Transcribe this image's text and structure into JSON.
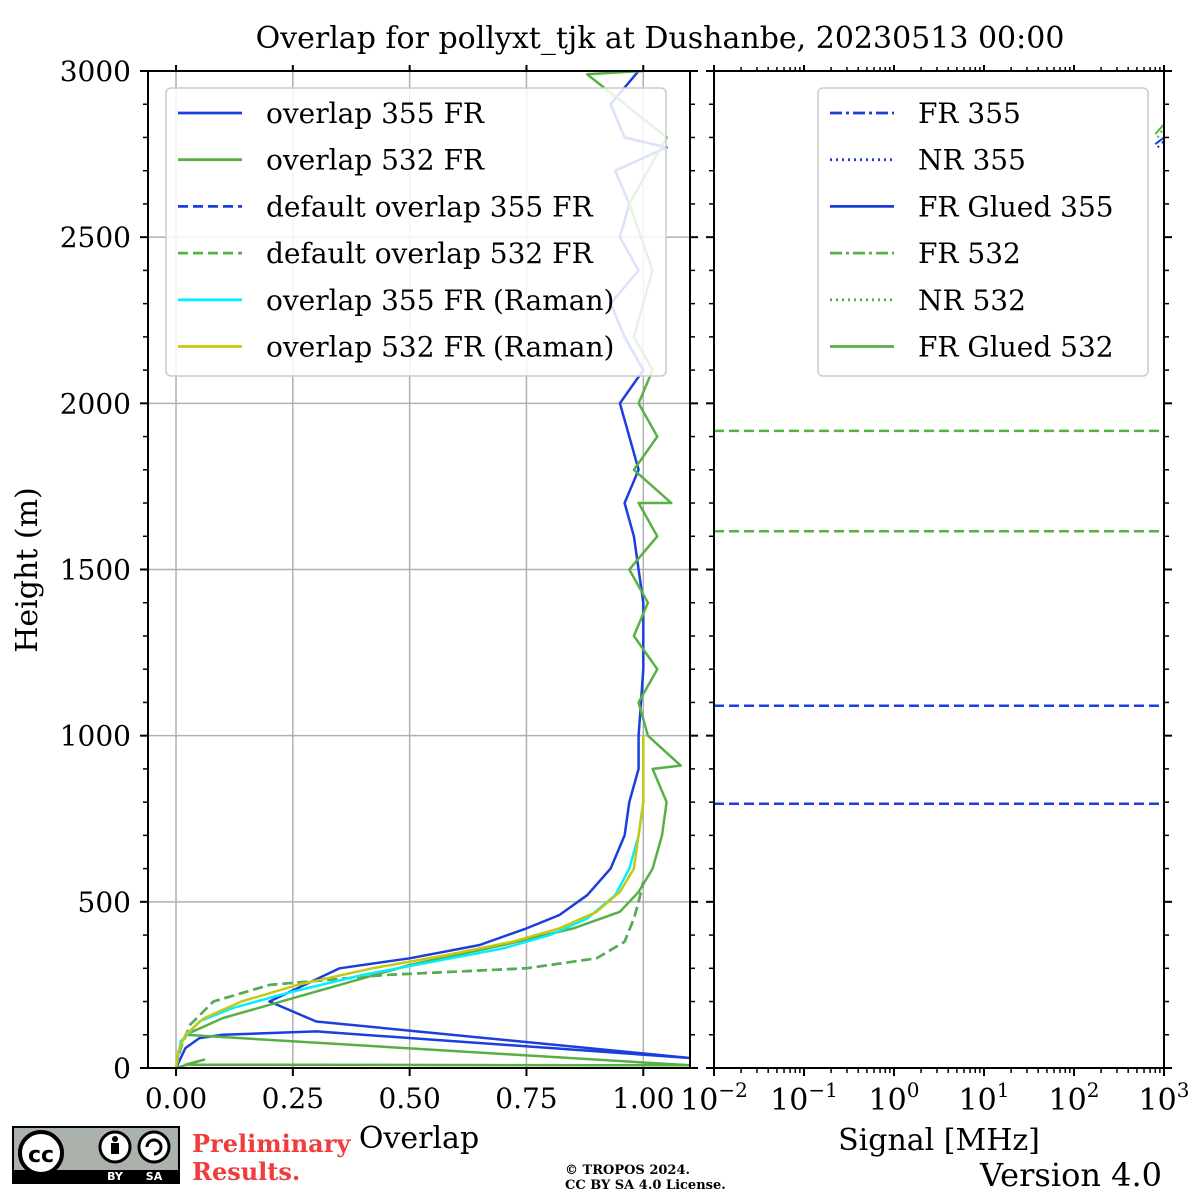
{
  "title": "Overlap for pollyxt_tjk at Dushanbe, 20230513 00:00",
  "colors": {
    "blue": "#1a3fdc",
    "green": "#58b045",
    "cyan": "#00f0ff",
    "yellow": "#c8c814",
    "grid": "#b0b0b0"
  },
  "chart_data": [
    {
      "type": "line",
      "name": "overlap-profile",
      "xlabel": "Overlap",
      "ylabel": "Height (m)",
      "xlim": [
        -0.06,
        1.1
      ],
      "ylim": [
        0,
        3000
      ],
      "xticks": [
        0.0,
        0.25,
        0.5,
        0.75,
        1.0
      ],
      "xticklabels": [
        "0.00",
        "0.25",
        "0.50",
        "0.75",
        "1.00"
      ],
      "yticks": [
        0,
        500,
        1000,
        1500,
        2000,
        2500,
        3000
      ],
      "yticklabels": [
        "0",
        "500",
        "1000",
        "1500",
        "2000",
        "2500",
        "3000"
      ],
      "grid": true,
      "legend_location": "upper-left",
      "series": [
        {
          "name": "overlap 355 FR",
          "color": "#1a3fdc",
          "style": "solid",
          "x": [
            0.0,
            0.02,
            0.05,
            0.1,
            0.3,
            1.1,
            0.3,
            0.2,
            0.35,
            0.5,
            0.65,
            0.75,
            0.82,
            0.88,
            0.93,
            0.96,
            0.97,
            0.99,
            0.99,
            1.0,
            1.0,
            0.99,
            0.98,
            0.96,
            0.99,
            0.97,
            0.95,
            1.0,
            0.96,
            0.93,
            0.99,
            0.95,
            0.97,
            0.94,
            1.05,
            0.96,
            0.93,
            0.99
          ],
          "y": [
            0,
            60,
            90,
            100,
            110,
            30,
            140,
            200,
            300,
            330,
            370,
            420,
            460,
            520,
            600,
            700,
            800,
            900,
            1000,
            1200,
            1400,
            1500,
            1600,
            1700,
            1800,
            1900,
            2000,
            2100,
            2200,
            2300,
            2400,
            2500,
            2600,
            2700,
            2770,
            2800,
            2900,
            3000
          ]
        },
        {
          "name": "overlap 532 FR",
          "color": "#58b045",
          "style": "solid",
          "x": [
            0.0,
            0.06,
            0.02,
            1.1,
            0.02,
            0.1,
            0.3,
            0.5,
            0.7,
            0.85,
            0.95,
            0.99,
            1.02,
            1.04,
            1.05,
            1.02,
            1.08,
            1.01,
            0.99,
            1.03,
            0.98,
            1.01,
            0.97,
            1.03,
            0.99,
            1.06,
            0.98,
            1.03,
            0.99,
            1.02,
            0.98,
            1.02,
            0.97,
            1.05,
            0.88,
            1.0
          ],
          "y": [
            0,
            25,
            10,
            8,
            100,
            150,
            230,
            310,
            370,
            420,
            470,
            530,
            600,
            700,
            800,
            900,
            910,
            1000,
            1100,
            1200,
            1300,
            1400,
            1500,
            1600,
            1700,
            1700,
            1800,
            1900,
            2000,
            2100,
            2200,
            2400,
            2600,
            2800,
            2990,
            3000
          ]
        },
        {
          "name": "default overlap 355 FR",
          "color": "#1a3fdc",
          "style": "dashed",
          "x": [
            0.0,
            0.01,
            0.03,
            0.08,
            0.2,
            0.45,
            0.75,
            0.9,
            0.96,
            0.98,
            0.99,
            1.0
          ],
          "y": [
            0,
            60,
            130,
            200,
            250,
            280,
            300,
            330,
            380,
            450,
            500,
            560
          ]
        },
        {
          "name": "default overlap 532 FR",
          "color": "#58b045",
          "style": "dashed",
          "x": [
            0.0,
            0.01,
            0.03,
            0.08,
            0.2,
            0.45,
            0.75,
            0.9,
            0.96,
            0.98,
            0.99,
            1.0
          ],
          "y": [
            0,
            60,
            130,
            200,
            250,
            280,
            300,
            330,
            380,
            450,
            500,
            560
          ]
        },
        {
          "name": "overlap 355 FR (Raman)",
          "color": "#00f0ff",
          "style": "solid",
          "x": [
            0.0,
            0.01,
            0.05,
            0.12,
            0.25,
            0.4,
            0.55,
            0.7,
            0.8,
            0.88,
            0.94,
            0.97,
            0.99,
            1.0,
            1.0
          ],
          "y": [
            0,
            80,
            140,
            180,
            230,
            280,
            320,
            360,
            400,
            450,
            520,
            600,
            700,
            800,
            1000
          ]
        },
        {
          "name": "overlap 532 FR (Raman)",
          "color": "#c8c814",
          "style": "solid",
          "x": [
            0.0,
            0.005,
            0.02,
            0.06,
            0.14,
            0.26,
            0.42,
            0.58,
            0.72,
            0.82,
            0.9,
            0.95,
            0.98,
            0.99,
            1.0,
            1.0
          ],
          "y": [
            0,
            50,
            100,
            150,
            200,
            250,
            300,
            340,
            380,
            420,
            470,
            530,
            600,
            700,
            800,
            1000
          ]
        }
      ]
    },
    {
      "type": "line",
      "name": "signal-profile",
      "xlabel": "Signal [MHz]",
      "xscale": "log",
      "xlim": [
        0.01,
        1000
      ],
      "ylim": [
        0,
        3000
      ],
      "xticks": [
        0.01,
        0.1,
        1,
        10,
        100,
        1000
      ],
      "xtick_bases": [
        "10",
        "10",
        "10",
        "10",
        "10",
        "10"
      ],
      "xtick_exponents": [
        "−2",
        "−1",
        "0",
        "1",
        "2",
        "3"
      ],
      "grid": false,
      "legend_location": "upper-right",
      "series": [
        {
          "name": "FR 355",
          "color": "#1a3fdc",
          "style": "dashdot",
          "x": [
            800,
            1000
          ],
          "y": [
            2780,
            2800
          ]
        },
        {
          "name": "NR 355",
          "color": "#1a3fdc",
          "style": "dotted",
          "x": [
            850,
            1000
          ],
          "y": [
            2770,
            2790
          ]
        },
        {
          "name": "FR Glued 355",
          "color": "#1a3fdc",
          "style": "solid",
          "x": [],
          "y": []
        },
        {
          "name": "FR 532",
          "color": "#58b045",
          "style": "dashdot",
          "x": [
            800,
            1000
          ],
          "y": [
            2810,
            2840
          ]
        },
        {
          "name": "NR 532",
          "color": "#58b045",
          "style": "dotted",
          "x": [
            850,
            1000
          ],
          "y": [
            2800,
            2830
          ]
        },
        {
          "name": "FR Glued 532",
          "color": "#58b045",
          "style": "solid",
          "x": [],
          "y": []
        }
      ],
      "hlines": [
        {
          "y": 1917,
          "color": "#58b045",
          "style": "dashed"
        },
        {
          "y": 1615,
          "color": "#58b045",
          "style": "dashed"
        },
        {
          "y": 1090,
          "color": "#1a3fdc",
          "style": "dashed"
        },
        {
          "y": 795,
          "color": "#1a3fdc",
          "style": "dashed"
        }
      ]
    }
  ],
  "footer": {
    "cc_by": "BY",
    "cc_sa": "SA",
    "preliminary_line1": "Preliminary",
    "preliminary_line2": "Results.",
    "copyright_line1": "© TROPOS 2024.",
    "copyright_line2": "CC BY SA 4.0 License.",
    "version": "Version 4.0"
  }
}
